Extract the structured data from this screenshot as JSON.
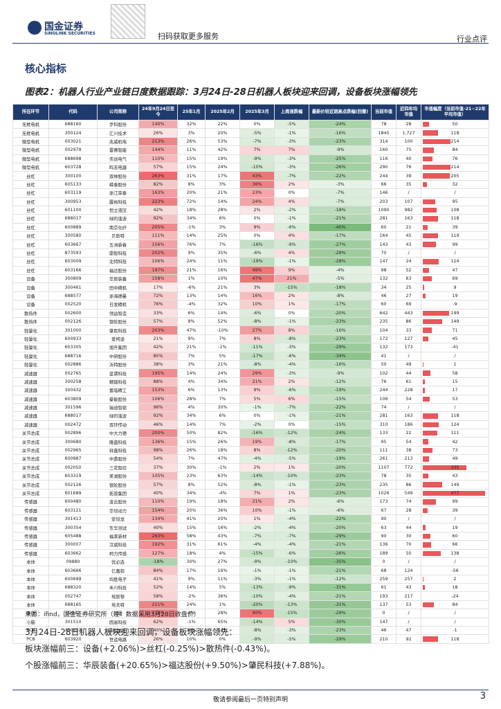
{
  "header": {
    "logo": "国金证券",
    "logo_en": "SINOLINK SECURITIES",
    "qr_text": "扫码获取更多服务",
    "report_type": "行业点评"
  },
  "section": "核心指标",
  "table": {
    "title": "图表2：机器人行业产业链日度数据跟踪：3月24日-28日机器人板块迎来回调，设备板块涨幅领先",
    "columns": [
      "所在环节",
      "代码",
      "公司简称",
      "24年9月24日至今",
      "25年1月",
      "2025年2月",
      "2025年3月",
      "上周涨跌幅",
      "最新价较近期高点跌幅(回撤)",
      "当前市值",
      "近四年均市值",
      "市值幅度（当前市值-21~22年平均市值）"
    ],
    "rows": [
      [
        "无框电机",
        "688160",
        "步科股份",
        "140%",
        "32%",
        "22%",
        "0%",
        "-5%",
        "-24%",
        "78",
        "28",
        "50"
      ],
      [
        "无框电机",
        "300124",
        "汇川技术",
        "26%",
        "3%",
        "20%",
        "-5%",
        "-1%",
        "-16%",
        "1845",
        "1,727",
        "118"
      ],
      [
        "微型电机",
        "003021",
        "兆威机电",
        "213%",
        "26%",
        "53%",
        "-7%",
        "-3%",
        "-23%",
        "314",
        "100",
        "214"
      ],
      [
        "微型电机",
        "002979",
        "雷赛智能",
        "144%",
        "11%",
        "42%",
        "7%",
        "7%",
        "-9%",
        "160",
        "75",
        "84"
      ],
      [
        "微型电机",
        "688698",
        "伟创电气",
        "110%",
        "15%",
        "19%",
        "-9%",
        "-3%",
        "-25%",
        "116",
        "40",
        "76"
      ],
      [
        "微型电机",
        "603728",
        "鸣志电器",
        "57%",
        "15%",
        "24%",
        "-10%",
        "-3%",
        "-26%",
        "290",
        "76",
        "214"
      ],
      [
        "丝杠",
        "300100",
        "双林股份",
        "263%",
        "31%",
        "17%",
        "43%",
        "-7%",
        "-22%",
        "244",
        "39",
        "205"
      ],
      [
        "丝杠",
        "605133",
        "嵘泰股份",
        "82%",
        "8%",
        "3%",
        "36%",
        "2%",
        "-3%",
        "66",
        "35",
        "32"
      ],
      [
        "丝杠",
        "603119",
        "浙江荣泰",
        "163%",
        "20%",
        "21%",
        "23%",
        "0%",
        "-7%",
        "146",
        "/",
        "/"
      ],
      [
        "丝杠",
        "300953",
        "震裕科技",
        "223%",
        "72%",
        "14%",
        "24%",
        "4%",
        "-7%",
        "203",
        "107",
        "95"
      ],
      [
        "丝杠",
        "601100",
        "恒立液压",
        "42%",
        "18%",
        "28%",
        "2%",
        "-2%",
        "-18%",
        "1090",
        "982",
        "108"
      ],
      [
        "丝杠",
        "688017",
        "绿的谐波",
        "92%",
        "34%",
        "6%",
        "0%",
        "-1%",
        "-21%",
        "281",
        "163",
        "118"
      ],
      [
        "丝杠",
        "600889",
        "南京化纤",
        "205%",
        "-1%",
        "3%",
        "9%",
        "-6%",
        "-40%",
        "60",
        "21",
        "39"
      ],
      [
        "丝杠",
        "300580",
        "贝斯特",
        "111%",
        "14%",
        "25%",
        "0%",
        "4%",
        "-17%",
        "164",
        "45",
        "119"
      ],
      [
        "丝杠",
        "603667",
        "五洲新春",
        "156%",
        "76%",
        "7%",
        "-16%",
        "-9%",
        "-27%",
        "143",
        "43",
        "99"
      ],
      [
        "丝杠",
        "873593",
        "鼎智科技",
        "202%",
        "9%",
        "35%",
        "-6%",
        "4%",
        "-28%",
        "70",
        "/",
        "/"
      ],
      [
        "丝杠",
        "603009",
        "北特科技",
        "106%",
        "24%",
        "11%",
        "-19%",
        "-1%",
        "-28%",
        "147",
        "24",
        "124"
      ],
      [
        "丝杠",
        "603166",
        "福达股份",
        "197%",
        "21%",
        "16%",
        "49%",
        "9%",
        "-4%",
        "98",
        "52",
        "47"
      ],
      [
        "设备",
        "300809",
        "华辰装备",
        "158%",
        "1%",
        "10%",
        "47%",
        "21%",
        "-5%",
        "132",
        "63",
        "69"
      ],
      [
        "设备",
        "300461",
        "田中精机",
        "17%",
        "-6%",
        "21%",
        "3%",
        "-15%",
        "-18%",
        "34",
        "25",
        "9"
      ],
      [
        "设备",
        "688577",
        "浙海德曼",
        "72%",
        "13%",
        "14%",
        "16%",
        "2%",
        "-8%",
        "46",
        "27",
        "19"
      ],
      [
        "设备",
        "002520",
        "日发精机",
        "76%",
        "-4%",
        "32%",
        "10%",
        "1%",
        "-17%",
        "60",
        "69",
        "-9"
      ],
      [
        "散热件",
        "002600",
        "领益智造",
        "33%",
        "6%",
        "14%",
        "-6%",
        "0%",
        "-20%",
        "642",
        "443",
        "199"
      ],
      [
        "散热件",
        "002126",
        "银轮股份",
        "57%",
        "8%",
        "52%",
        "-8%",
        "-1%",
        "-23%",
        "235",
        "86",
        "149"
      ],
      [
        "轻量化",
        "301000",
        "肇民科技",
        "203%",
        "47%",
        "-10%",
        "27%",
        "8%",
        "-16%",
        "104",
        "33",
        "71"
      ],
      [
        "轻量化",
        "600933",
        "爱柯迪",
        "21%",
        "9%",
        "7%",
        "8%",
        "-8%",
        "-23%",
        "172",
        "127",
        "45"
      ],
      [
        "轻量化",
        "603305",
        "旭升集团",
        "42%",
        "21%",
        "-1%",
        "-11%",
        "-3%",
        "-29%",
        "132",
        "173",
        "-41"
      ],
      [
        "轻量化",
        "688716",
        "中研股份",
        "85%",
        "7%",
        "5%",
        "-17%",
        "-6%",
        "-34%",
        "41",
        "/",
        "/"
      ],
      [
        "轻量化",
        "002886",
        "沃特股份",
        "38%",
        "3%",
        "21%",
        "-8%",
        "-4%",
        "-16%",
        "50",
        "49",
        "1"
      ],
      [
        "减速器",
        "002765",
        "蓝黛科技",
        "195%",
        "14%",
        "24%",
        "29%",
        "-3%",
        "-9%",
        "102",
        "44",
        "58"
      ],
      [
        "减速器",
        "300258",
        "精锻科技",
        "88%",
        "4%",
        "34%",
        "21%",
        "2%",
        "-12%",
        "76",
        "61",
        "15"
      ],
      [
        "减速器",
        "300432",
        "富临精工",
        "153%",
        "6%",
        "13%",
        "9%",
        "-6%",
        "-19%",
        "244",
        "228",
        "17"
      ],
      [
        "减速器",
        "603809",
        "豪能股份",
        "106%",
        "28%",
        "7%",
        "5%",
        "6%",
        "-15%",
        "106",
        "54",
        "53"
      ],
      [
        "减速器",
        "301596",
        "瑞迪智驱",
        "96%",
        "4%",
        "30%",
        "-1%",
        "-7%",
        "-22%",
        "74",
        "/",
        "/"
      ],
      [
        "减速器",
        "688017",
        "绿的谐波",
        "92%",
        "34%",
        "6%",
        "0%",
        "-1%",
        "-21%",
        "281",
        "163",
        "118"
      ],
      [
        "减速器",
        "002472",
        "双环传动",
        "46%",
        "14%",
        "7%",
        "-2%",
        "0%",
        "-15%",
        "310",
        "186",
        "124"
      ],
      [
        "关节总成",
        "002896",
        "中大力德",
        "200%",
        "50%",
        "82%",
        "-16%",
        "-12%",
        "-24%",
        "133",
        "22",
        "111"
      ],
      [
        "关节总成",
        "300680",
        "隆盛科技",
        "136%",
        "15%",
        "26%",
        "19%",
        "-8%",
        "-17%",
        "95",
        "54",
        "42"
      ],
      [
        "关节总成",
        "002965",
        "祥鑫科技",
        "98%",
        "26%",
        "18%",
        "8%",
        "-12%",
        "-20%",
        "111",
        "38",
        "73"
      ],
      [
        "关节总成",
        "600887",
        "中鼎股份",
        "54%",
        "7%",
        "47%",
        "-4%",
        "-5%",
        "-19%",
        "261",
        "213",
        "49"
      ],
      [
        "关节总成",
        "002050",
        "三花智控",
        "37%",
        "30%",
        "-1%",
        "2%",
        "1%",
        "-20%",
        "1107",
        "772",
        "335"
      ],
      [
        "关节总成",
        "603319",
        "美湖股份",
        "105%",
        "23%",
        "63%",
        "-14%",
        "-10%",
        "-23%",
        "78",
        "35",
        "43"
      ],
      [
        "关节总成",
        "002126",
        "银轮股份",
        "57%",
        "8%",
        "52%",
        "-8%",
        "-1%",
        "-23%",
        "235",
        "86",
        "149"
      ],
      [
        "关节总成",
        "601689",
        "拓普集团",
        "40%",
        "34%",
        "-4%",
        "7%",
        "1%",
        "-23%",
        "1026",
        "549",
        "477"
      ],
      [
        "传感器",
        "600480",
        "凌云股份",
        "110%",
        "19%",
        "18%",
        "21%",
        "2%",
        "-6%",
        "173",
        "74",
        "99"
      ],
      [
        "传感器",
        "603121",
        "华培动力",
        "154%",
        "20%",
        "36%",
        "10%",
        "-1%",
        "-6%",
        "67",
        "28",
        "39"
      ],
      [
        "传感器",
        "301413",
        "安培龙",
        "134%",
        "41%",
        "20%",
        "1%",
        "-4%",
        "-22%",
        "90",
        "/",
        "/"
      ],
      [
        "传感器",
        "300354",
        "东华测试",
        "40%",
        "15%",
        "16%",
        "-2%",
        "-4%",
        "-20%",
        "63",
        "44",
        "19"
      ],
      [
        "传感器",
        "605488",
        "福莱新材",
        "263%",
        "58%",
        "43%",
        "-7%",
        "-7%",
        "-29%",
        "90",
        "30",
        "60"
      ],
      [
        "传感器",
        "300007",
        "汉威科技",
        "192%",
        "31%",
        "61%",
        "-4%",
        "-4%",
        "-21%",
        "136",
        "70",
        "66"
      ],
      [
        "传感器",
        "603662",
        "柯力传感",
        "127%",
        "18%",
        "4%",
        "-15%",
        "-6%",
        "-26%",
        "189",
        "50",
        "138"
      ],
      [
        "本体",
        "09880",
        "优必选",
        "-18%",
        "30%",
        "27%",
        "-9%",
        "-10%",
        "-35%",
        "0",
        "/",
        "/"
      ],
      [
        "本体",
        "603666",
        "亿嘉和",
        "84%",
        "17%",
        "16%",
        "-1%",
        "-1%",
        "-21%",
        "68",
        "124",
        "-56"
      ],
      [
        "本体",
        "600699",
        "均胜电子",
        "41%",
        "9%",
        "11%",
        "-3%",
        "-1%",
        "-12%",
        "259",
        "257",
        "2"
      ],
      [
        "本体",
        "688320",
        "禾川科技",
        "52%",
        "14%",
        "5%",
        "-13%",
        "-9%",
        "-31%",
        "61",
        "43",
        "18"
      ],
      [
        "本体",
        "002747",
        "埃斯顿",
        "58%",
        "-2%",
        "36%",
        "-10%",
        "-4%",
        "-21%",
        "193",
        "217",
        "-24"
      ],
      [
        "本体",
        "688165",
        "埃夫特",
        "211%",
        "24%",
        "1%",
        "-20%",
        "-13%",
        "-31%",
        "137",
        "53",
        "84"
      ],
      [
        "本体",
        "02432",
        "越疆",
        "218%",
        "4%",
        "28%",
        "90%",
        "-15%",
        "-29%",
        "0",
        "/",
        "/"
      ],
      [
        "小脑",
        "301510",
        "固高科技",
        "62%",
        "-1%",
        "65%",
        "-14%",
        "5%",
        "-30%",
        "147",
        "/",
        "/"
      ],
      [
        "PCB",
        "300852",
        "四会富仕",
        "40%",
        "18%",
        "14%",
        "-8%",
        "-3%",
        "-23%",
        "46",
        "47",
        "-1"
      ],
      [
        "PCB",
        "603920",
        "世运电路",
        "26%",
        "10%",
        "0%",
        "-9%",
        "-5%",
        "-29%",
        "210",
        "92",
        "118"
      ]
    ],
    "source": "来源：ifind，国金证券研究所（注：数据采用3月28日收盘价）"
  },
  "paragraphs": [
    "3月24日-28日机器人板块迎来回调，设备板块涨幅领先：",
    "板块涨幅前三：设备(+2.06%)>丝杠(-0.25%)>散热件(-0.43%)。",
    "个股涨幅前三：华辰装备(+20.65%)>福达股份(+9.50%)>肇民科技(+7.88%)。"
  ],
  "footer": {
    "text": "敬请参阅最后一页特别声明",
    "page": "3"
  }
}
